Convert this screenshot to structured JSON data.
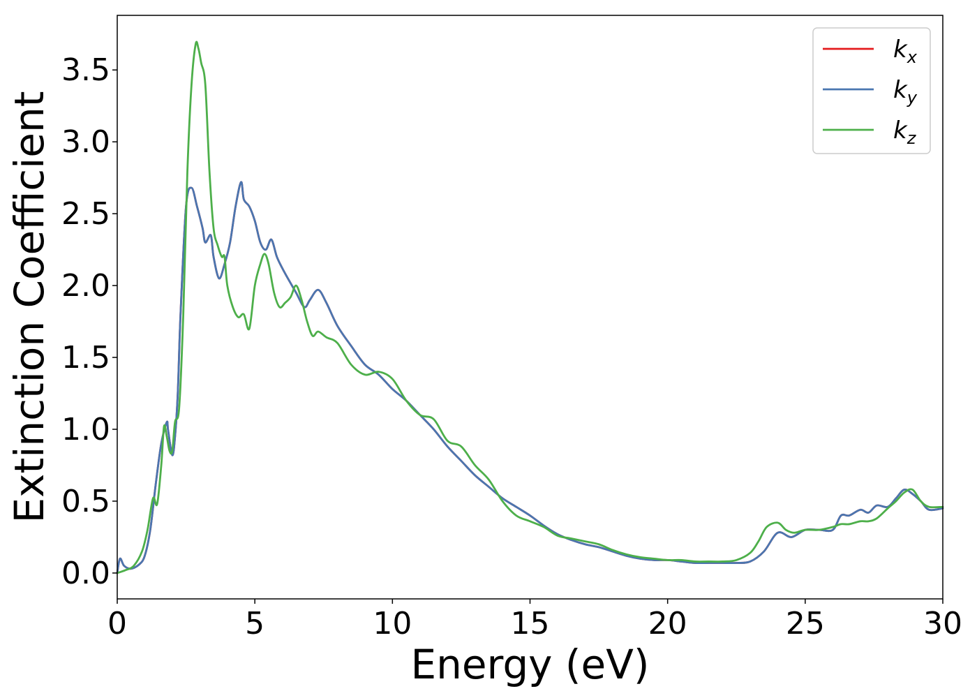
{
  "chart_data": {
    "type": "line",
    "title": "",
    "xlabel": "Energy (eV)",
    "ylabel": "Extinction Coefficient",
    "xlim": [
      0,
      30
    ],
    "ylim": [
      -0.18,
      3.88
    ],
    "xticks": [
      0,
      5,
      10,
      15,
      20,
      25,
      30
    ],
    "xtick_labels": [
      "0",
      "5",
      "10",
      "15",
      "20",
      "25",
      "30"
    ],
    "yticks": [
      0.0,
      0.5,
      1.0,
      1.5,
      2.0,
      2.5,
      3.0,
      3.5
    ],
    "ytick_labels": [
      "0.0",
      "0.5",
      "1.0",
      "1.5",
      "2.0",
      "2.5",
      "3.0",
      "3.5"
    ],
    "grid": false,
    "legend_position": "top-right",
    "series": [
      {
        "name": "k_x",
        "legend_base": "k",
        "legend_sub": "x",
        "color": "#e41a1c",
        "x": [
          0,
          0.1,
          0.25,
          0.5,
          0.8,
          1.0,
          1.2,
          1.4,
          1.6,
          1.8,
          1.85,
          2.0,
          2.1,
          2.2,
          2.3,
          2.5,
          2.7,
          2.9,
          3.1,
          3.2,
          3.4,
          3.5,
          3.7,
          3.9,
          4.1,
          4.3,
          4.5,
          4.6,
          4.8,
          5.0,
          5.2,
          5.4,
          5.6,
          5.8,
          6.0,
          6.2,
          6.5,
          6.8,
          7.0,
          7.3,
          7.6,
          8.0,
          8.5,
          9.0,
          9.5,
          10.0,
          10.5,
          11.0,
          11.5,
          12.0,
          12.5,
          13.0,
          13.5,
          14.0,
          14.5,
          15.0,
          15.5,
          16.0,
          16.5,
          17.0,
          17.5,
          18.0,
          18.5,
          19.0,
          19.5,
          20.0,
          20.5,
          21.0,
          21.5,
          22.0,
          22.5,
          23.0,
          23.5,
          24.0,
          24.5,
          25.0,
          25.5,
          26.0,
          26.3,
          26.6,
          27.0,
          27.3,
          27.6,
          28.0,
          28.3,
          28.6,
          28.9,
          29.2,
          29.5,
          30.0
        ],
        "values": [
          0.0,
          0.1,
          0.05,
          0.03,
          0.06,
          0.12,
          0.3,
          0.62,
          0.9,
          1.05,
          0.99,
          0.82,
          0.95,
          1.25,
          1.8,
          2.55,
          2.68,
          2.55,
          2.4,
          2.3,
          2.35,
          2.2,
          2.05,
          2.15,
          2.3,
          2.55,
          2.72,
          2.6,
          2.55,
          2.45,
          2.3,
          2.25,
          2.32,
          2.2,
          2.12,
          2.05,
          1.95,
          1.85,
          1.9,
          1.97,
          1.88,
          1.72,
          1.58,
          1.45,
          1.38,
          1.28,
          1.2,
          1.1,
          1.0,
          0.88,
          0.78,
          0.68,
          0.6,
          0.52,
          0.46,
          0.4,
          0.33,
          0.27,
          0.23,
          0.2,
          0.18,
          0.15,
          0.12,
          0.1,
          0.09,
          0.09,
          0.08,
          0.07,
          0.07,
          0.07,
          0.07,
          0.08,
          0.15,
          0.28,
          0.25,
          0.3,
          0.3,
          0.3,
          0.4,
          0.4,
          0.44,
          0.42,
          0.47,
          0.46,
          0.52,
          0.58,
          0.55,
          0.5,
          0.44,
          0.45
        ]
      },
      {
        "name": "k_y",
        "legend_base": "k",
        "legend_sub": "y",
        "color": "#4a76b0",
        "x": [
          0,
          0.1,
          0.25,
          0.5,
          0.8,
          1.0,
          1.2,
          1.4,
          1.6,
          1.8,
          1.85,
          2.0,
          2.1,
          2.2,
          2.3,
          2.5,
          2.7,
          2.9,
          3.1,
          3.2,
          3.4,
          3.5,
          3.7,
          3.9,
          4.1,
          4.3,
          4.5,
          4.6,
          4.8,
          5.0,
          5.2,
          5.4,
          5.6,
          5.8,
          6.0,
          6.2,
          6.5,
          6.8,
          7.0,
          7.3,
          7.6,
          8.0,
          8.5,
          9.0,
          9.5,
          10.0,
          10.5,
          11.0,
          11.5,
          12.0,
          12.5,
          13.0,
          13.5,
          14.0,
          14.5,
          15.0,
          15.5,
          16.0,
          16.5,
          17.0,
          17.5,
          18.0,
          18.5,
          19.0,
          19.5,
          20.0,
          20.5,
          21.0,
          21.5,
          22.0,
          22.5,
          23.0,
          23.5,
          24.0,
          24.5,
          25.0,
          25.5,
          26.0,
          26.3,
          26.6,
          27.0,
          27.3,
          27.6,
          28.0,
          28.3,
          28.6,
          28.9,
          29.2,
          29.5,
          30.0
        ],
        "values": [
          0.0,
          0.1,
          0.05,
          0.03,
          0.06,
          0.12,
          0.3,
          0.62,
          0.9,
          1.05,
          0.99,
          0.82,
          0.95,
          1.25,
          1.8,
          2.55,
          2.68,
          2.55,
          2.4,
          2.3,
          2.35,
          2.2,
          2.05,
          2.15,
          2.3,
          2.55,
          2.72,
          2.6,
          2.55,
          2.45,
          2.3,
          2.25,
          2.32,
          2.2,
          2.12,
          2.05,
          1.95,
          1.85,
          1.9,
          1.97,
          1.88,
          1.72,
          1.58,
          1.45,
          1.38,
          1.28,
          1.2,
          1.1,
          1.0,
          0.88,
          0.78,
          0.68,
          0.6,
          0.52,
          0.46,
          0.4,
          0.33,
          0.27,
          0.23,
          0.2,
          0.18,
          0.15,
          0.12,
          0.1,
          0.09,
          0.09,
          0.08,
          0.07,
          0.07,
          0.07,
          0.07,
          0.08,
          0.15,
          0.28,
          0.25,
          0.3,
          0.3,
          0.3,
          0.4,
          0.4,
          0.44,
          0.42,
          0.47,
          0.46,
          0.52,
          0.58,
          0.55,
          0.5,
          0.44,
          0.45
        ]
      },
      {
        "name": "k_z",
        "legend_base": "k",
        "legend_sub": "z",
        "color": "#4daf4a",
        "x": [
          0,
          0.3,
          0.6,
          0.9,
          1.1,
          1.3,
          1.45,
          1.6,
          1.7,
          1.8,
          1.9,
          2.0,
          2.1,
          2.25,
          2.4,
          2.55,
          2.7,
          2.85,
          2.95,
          3.05,
          3.2,
          3.35,
          3.5,
          3.65,
          3.8,
          3.9,
          4.0,
          4.2,
          4.4,
          4.6,
          4.8,
          5.0,
          5.2,
          5.35,
          5.5,
          5.7,
          5.9,
          6.1,
          6.3,
          6.5,
          6.7,
          6.9,
          7.1,
          7.3,
          7.6,
          8.0,
          8.5,
          9.0,
          9.5,
          10.0,
          10.5,
          11.0,
          11.5,
          12.0,
          12.5,
          13.0,
          13.5,
          14.0,
          14.5,
          15.0,
          15.5,
          16.0,
          16.5,
          17.0,
          17.5,
          18.0,
          18.5,
          19.0,
          19.5,
          20.0,
          20.5,
          21.0,
          21.5,
          22.0,
          22.5,
          23.0,
          23.3,
          23.6,
          24.0,
          24.3,
          24.6,
          25.0,
          25.5,
          26.0,
          26.3,
          26.6,
          27.0,
          27.3,
          27.6,
          28.0,
          28.3,
          28.6,
          28.9,
          29.2,
          29.5,
          30.0
        ],
        "values": [
          0.0,
          0.02,
          0.05,
          0.15,
          0.3,
          0.52,
          0.48,
          0.75,
          1.02,
          0.95,
          0.85,
          0.85,
          1.05,
          1.15,
          1.8,
          2.8,
          3.4,
          3.68,
          3.65,
          3.55,
          3.4,
          2.8,
          2.4,
          2.28,
          2.2,
          2.2,
          2.0,
          1.85,
          1.78,
          1.8,
          1.7,
          2.0,
          2.15,
          2.22,
          2.15,
          1.95,
          1.85,
          1.88,
          1.92,
          2.0,
          1.9,
          1.75,
          1.65,
          1.68,
          1.64,
          1.6,
          1.45,
          1.38,
          1.4,
          1.35,
          1.2,
          1.1,
          1.07,
          0.92,
          0.88,
          0.75,
          0.65,
          0.5,
          0.4,
          0.36,
          0.32,
          0.26,
          0.24,
          0.22,
          0.2,
          0.16,
          0.13,
          0.11,
          0.1,
          0.09,
          0.09,
          0.08,
          0.08,
          0.08,
          0.09,
          0.14,
          0.22,
          0.32,
          0.35,
          0.3,
          0.28,
          0.3,
          0.3,
          0.32,
          0.34,
          0.34,
          0.36,
          0.36,
          0.38,
          0.45,
          0.5,
          0.56,
          0.58,
          0.5,
          0.46,
          0.46
        ]
      }
    ]
  }
}
